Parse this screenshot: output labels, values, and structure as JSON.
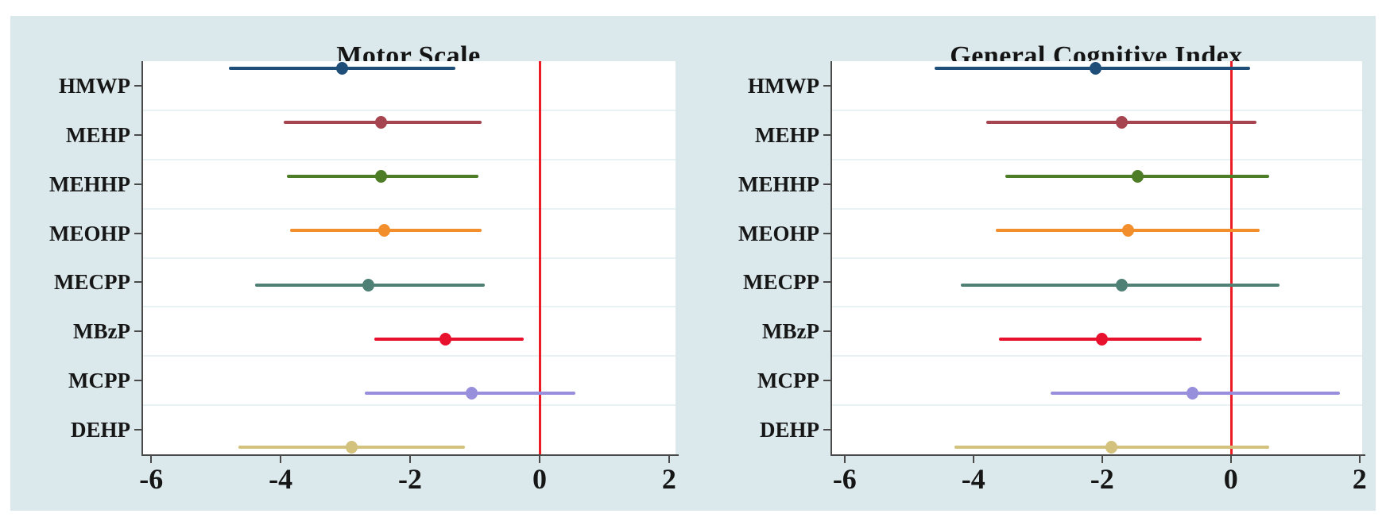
{
  "figure": {
    "background_color": "#dbe9ec",
    "plot_background_color": "#ffffff",
    "grid_color": "#e8f1f3",
    "axis_color": "#4a4a4a",
    "text_color": "#161616",
    "reference_line_color": "#ed1c24"
  },
  "chart_data": [
    {
      "type": "scatter",
      "subtype": "forest-ci",
      "title": "Motor Scale",
      "xlabel": "",
      "ylabel": "",
      "xlim": [
        -6.15,
        2.1
      ],
      "x_ticks": [
        -6,
        -4,
        -2,
        0,
        2
      ],
      "x_tick_labels": [
        "-6",
        "-4",
        "-2",
        "0",
        "2"
      ],
      "reference_line_x": 0,
      "grid": true,
      "legend": false,
      "categories": [
        "HMWP",
        "MEHP",
        "MEHHP",
        "MEOHP",
        "MECPP",
        "MBzP",
        "MCPP",
        "DEHP"
      ],
      "rows": [
        {
          "label": "HMWP",
          "estimate": -3.05,
          "ci_low": -4.8,
          "ci_high": -1.3,
          "color": "#1f4e79"
        },
        {
          "label": "MEHP",
          "estimate": -2.45,
          "ci_low": -3.95,
          "ci_high": -0.9,
          "color": "#a6454f"
        },
        {
          "label": "MEHHP",
          "estimate": -2.45,
          "ci_low": -3.9,
          "ci_high": -0.95,
          "color": "#4e7d28"
        },
        {
          "label": "MEOHP",
          "estimate": -2.4,
          "ci_low": -3.85,
          "ci_high": -0.9,
          "color": "#f28e2b"
        },
        {
          "label": "MECPP",
          "estimate": -2.65,
          "ci_low": -4.4,
          "ci_high": -0.85,
          "color": "#4e8076"
        },
        {
          "label": "MBzP",
          "estimate": -1.45,
          "ci_low": -2.55,
          "ci_high": -0.25,
          "color": "#e8112d"
        },
        {
          "label": "MCPP",
          "estimate": -1.05,
          "ci_low": -2.7,
          "ci_high": 0.55,
          "color": "#988fdc"
        },
        {
          "label": "DEHP",
          "estimate": -2.9,
          "ci_low": -4.65,
          "ci_high": -1.15,
          "color": "#d2c27d"
        }
      ]
    },
    {
      "type": "scatter",
      "subtype": "forest-ci",
      "title": "General Cognitive Index",
      "xlabel": "",
      "ylabel": "",
      "xlim": [
        -6.22,
        2.04
      ],
      "x_ticks": [
        -6,
        -4,
        -2,
        0,
        2
      ],
      "x_tick_labels": [
        "-6",
        "-4",
        "-2",
        "0",
        "2"
      ],
      "reference_line_x": 0,
      "grid": true,
      "legend": false,
      "categories": [
        "HMWP",
        "MEHP",
        "MEHHP",
        "MEOHP",
        "MECPP",
        "MBzP",
        "MCPP",
        "DEHP"
      ],
      "rows": [
        {
          "label": "HMWP",
          "estimate": -2.1,
          "ci_low": -4.6,
          "ci_high": 0.3,
          "color": "#1f4e79"
        },
        {
          "label": "MEHP",
          "estimate": -1.7,
          "ci_low": -3.8,
          "ci_high": 0.4,
          "color": "#a6454f"
        },
        {
          "label": "MEHHP",
          "estimate": -1.45,
          "ci_low": -3.5,
          "ci_high": 0.6,
          "color": "#4e7d28"
        },
        {
          "label": "MEOHP",
          "estimate": -1.6,
          "ci_low": -3.65,
          "ci_high": 0.45,
          "color": "#f28e2b"
        },
        {
          "label": "MECPP",
          "estimate": -1.7,
          "ci_low": -4.2,
          "ci_high": 0.75,
          "color": "#4e8076"
        },
        {
          "label": "MBzP",
          "estimate": -2.0,
          "ci_low": -3.6,
          "ci_high": -0.45,
          "color": "#e8112d"
        },
        {
          "label": "MCPP",
          "estimate": -0.6,
          "ci_low": -2.8,
          "ci_high": 1.7,
          "color": "#988fdc"
        },
        {
          "label": "DEHP",
          "estimate": -1.85,
          "ci_low": -4.3,
          "ci_high": 0.6,
          "color": "#d2c27d"
        }
      ]
    }
  ]
}
